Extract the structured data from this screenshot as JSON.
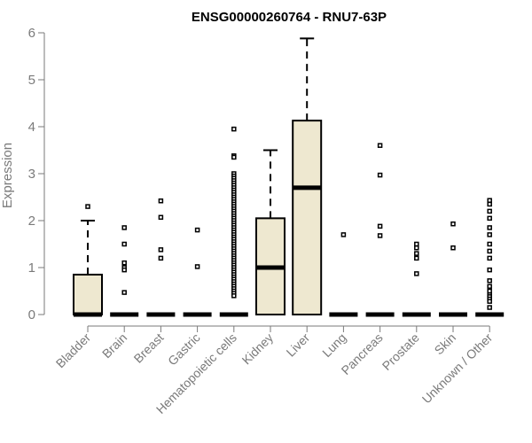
{
  "chart_data": {
    "type": "boxplot",
    "title": "ENSG00000260764 - RNU7-63P",
    "xlabel": "",
    "ylabel": "Expression",
    "ylim": [
      0,
      6
    ],
    "yticks": [
      0,
      1,
      2,
      3,
      4,
      5,
      6
    ],
    "grid": false,
    "legend": "none",
    "colors": {
      "box_fill": "#EEE8D0",
      "box_stroke": "#000000",
      "axis": "#7a7a7a",
      "tick_label": "#7a7a7a",
      "title": "#000000"
    },
    "categories": [
      "Bladder",
      "Brain",
      "Breast",
      "Gastric",
      "Hematopoietic cells",
      "Kidney",
      "Liver",
      "Lung",
      "Pancreas",
      "Prostate",
      "Skin",
      "Unknown / Other"
    ],
    "boxes": [
      {
        "category": "Bladder",
        "min": 0,
        "q1": 0,
        "median": 0,
        "q3": 0.85,
        "max": 2.0,
        "outliers": [
          2.3
        ]
      },
      {
        "category": "Brain",
        "min": 0,
        "q1": 0,
        "median": 0,
        "q3": 0,
        "max": 0,
        "outliers": [
          1.85,
          1.5,
          1.1,
          1.0,
          0.95,
          0.47
        ]
      },
      {
        "category": "Breast",
        "min": 0,
        "q1": 0,
        "median": 0,
        "q3": 0,
        "max": 0,
        "outliers": [
          2.42,
          2.07,
          1.38,
          1.2
        ]
      },
      {
        "category": "Gastric",
        "min": 0,
        "q1": 0,
        "median": 0,
        "q3": 0,
        "max": 0,
        "outliers": [
          1.8,
          1.02
        ]
      },
      {
        "category": "Hematopoietic cells",
        "min": 0,
        "q1": 0,
        "median": 0,
        "q3": 0,
        "max": 0,
        "outliers": [
          3.95,
          3.38,
          3.35,
          3.0,
          2.95,
          2.9,
          2.85,
          2.8,
          2.75,
          2.7,
          2.65,
          2.6,
          2.55,
          2.5,
          2.45,
          2.4,
          2.35,
          2.3,
          2.25,
          2.2,
          2.15,
          2.1,
          2.05,
          2.0,
          1.95,
          1.9,
          1.85,
          1.8,
          1.75,
          1.7,
          1.65,
          1.6,
          1.55,
          1.5,
          1.45,
          1.4,
          1.35,
          1.3,
          1.25,
          1.2,
          1.15,
          1.1,
          1.05,
          1.0,
          0.95,
          0.9,
          0.85,
          0.8,
          0.75,
          0.7,
          0.65,
          0.6,
          0.55,
          0.5,
          0.45,
          0.4
        ]
      },
      {
        "category": "Kidney",
        "min": 0,
        "q1": 0,
        "median": 1.0,
        "q3": 2.05,
        "max": 3.5,
        "outliers": []
      },
      {
        "category": "Liver",
        "min": 0,
        "q1": 0,
        "median": 2.7,
        "q3": 4.13,
        "max": 5.88,
        "outliers": []
      },
      {
        "category": "Lung",
        "min": 0,
        "q1": 0,
        "median": 0,
        "q3": 0,
        "max": 0,
        "outliers": [
          1.7
        ]
      },
      {
        "category": "Pancreas",
        "min": 0,
        "q1": 0,
        "median": 0,
        "q3": 0,
        "max": 0,
        "outliers": [
          3.6,
          2.97,
          1.88,
          1.68
        ]
      },
      {
        "category": "Prostate",
        "min": 0,
        "q1": 0,
        "median": 0,
        "q3": 0,
        "max": 0,
        "outliers": [
          1.5,
          1.42,
          1.3,
          1.2,
          0.87
        ]
      },
      {
        "category": "Skin",
        "min": 0,
        "q1": 0,
        "median": 0,
        "q3": 0,
        "max": 0,
        "outliers": [
          1.93,
          1.42
        ]
      },
      {
        "category": "Unknown / Other",
        "min": 0,
        "q1": 0,
        "median": 0,
        "q3": 0,
        "max": 0,
        "outliers": [
          2.43,
          2.35,
          2.2,
          2.05,
          1.85,
          1.7,
          1.5,
          1.35,
          1.2,
          0.95,
          0.72,
          0.6,
          0.5,
          0.42,
          0.38,
          0.33,
          0.28,
          0.15
        ]
      }
    ]
  }
}
